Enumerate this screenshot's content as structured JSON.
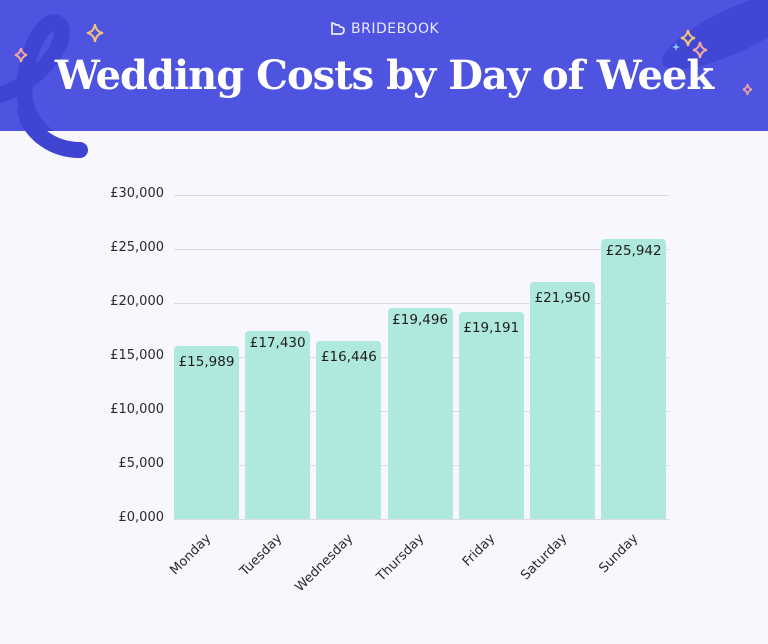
{
  "header": {
    "brand": "BRIDEBOOK",
    "title": "Wedding Costs by Day of Week",
    "background_color": "#4e53e0"
  },
  "icons": {
    "logo": "heart-outline-icon",
    "sparkles": "sparkle-icon"
  },
  "colors": {
    "bar": "#afe8dc",
    "background": "#f8f7fd",
    "gridline": "#dcdbe2",
    "sparkle_gold": "#f5c47a",
    "sparkle_pink": "#f4a6a0",
    "sparkle_blue": "#8fd0f5"
  },
  "chart_data": {
    "type": "bar",
    "title": "Wedding Costs by Day of Week",
    "xlabel": "",
    "ylabel": "",
    "categories": [
      "Monday",
      "Tuesday",
      "Wednesday",
      "Thursday",
      "Friday",
      "Saturday",
      "Sunday"
    ],
    "values": [
      15989,
      17430,
      16446,
      19496,
      19191,
      21950,
      25942
    ],
    "value_labels": [
      "£15,989",
      "£17,430",
      "£16,446",
      "£19,496",
      "£19,191",
      "£21,950",
      "£25,942"
    ],
    "ylim": [
      0,
      30000
    ],
    "yticks": [
      0,
      5000,
      10000,
      15000,
      20000,
      25000,
      30000
    ],
    "ytick_labels": [
      "£0,000",
      "£5,000",
      "£10,000",
      "£15,000",
      "£20,000",
      "£25,000",
      "£30,000"
    ],
    "grid": true,
    "legend": null
  }
}
